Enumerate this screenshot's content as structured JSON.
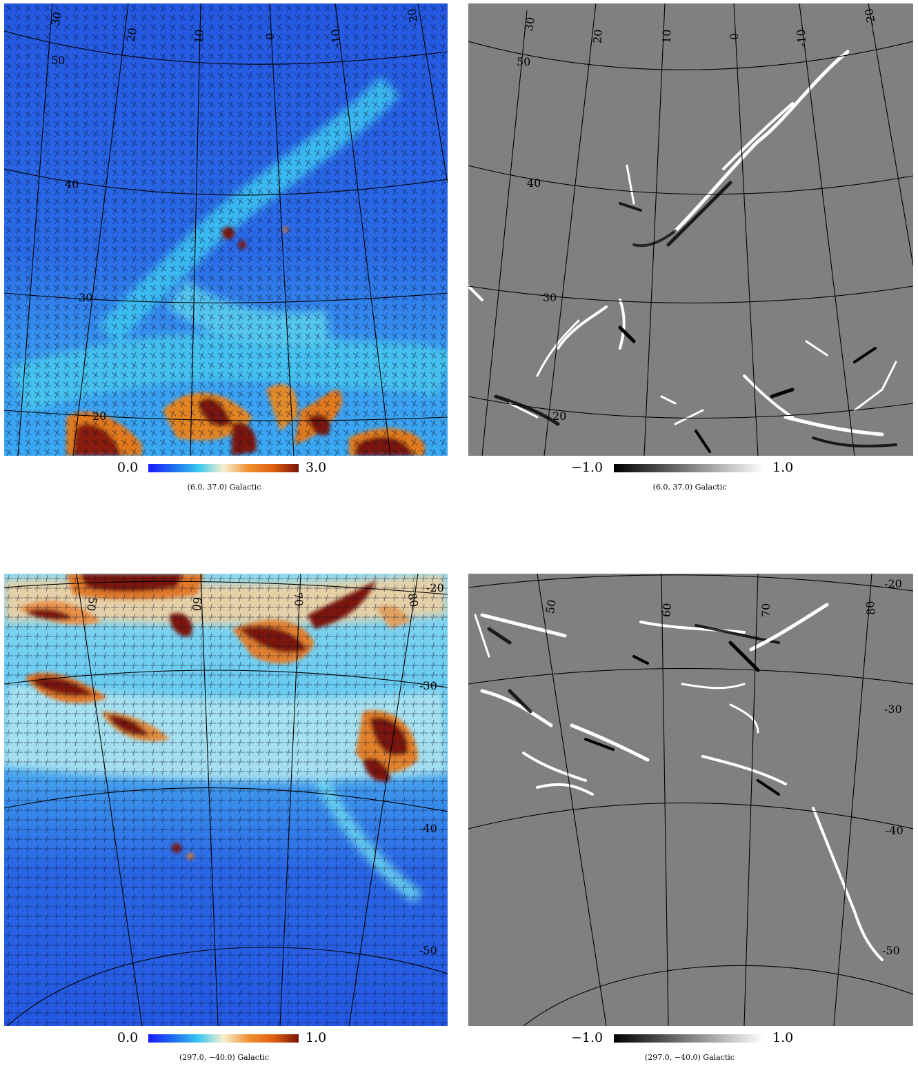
{
  "panels": [
    {
      "id": "top-left",
      "colorbar": {
        "min": "0.0",
        "max": "3.0",
        "type": "jet"
      },
      "caption": "(6.0, 37.0) Galactic",
      "lon_labels": [
        "30",
        "20",
        "10",
        "0",
        "-10",
        "-20"
      ],
      "lat_labels": [
        "50",
        "40",
        "30",
        "20"
      ]
    },
    {
      "id": "top-right",
      "colorbar": {
        "min": "−1.0",
        "max": "1.0",
        "type": "gray"
      },
      "caption": "(6.0, 37.0) Galactic",
      "lon_labels": [
        "30",
        "20",
        "10",
        "0",
        "-10",
        "-20"
      ],
      "lat_labels": [
        "50",
        "40",
        "30",
        "20"
      ]
    },
    {
      "id": "bottom-left",
      "colorbar": {
        "min": "0.0",
        "max": "1.0",
        "type": "jet"
      },
      "caption": "(297.0, −40.0) Galactic",
      "lon_labels": [
        "50",
        "60",
        "70",
        "80"
      ],
      "lat_labels": [
        "-20",
        "-30",
        "-40",
        "-50"
      ]
    },
    {
      "id": "bottom-right",
      "colorbar": {
        "min": "−1.0",
        "max": "1.0",
        "type": "gray"
      },
      "caption": "(297.0, −40.0) Galactic",
      "lon_labels": [
        "50",
        "60",
        "70",
        "80"
      ],
      "lat_labels": [
        "-20",
        "-30",
        "-40",
        "-50"
      ]
    }
  ],
  "colors": {
    "map_blue": "#1f5fe0",
    "map_cyan": "#37c8f0",
    "map_orange": "#e07a1a",
    "map_darkred": "#7a1208",
    "gray_bg": "#7f7f7f"
  }
}
